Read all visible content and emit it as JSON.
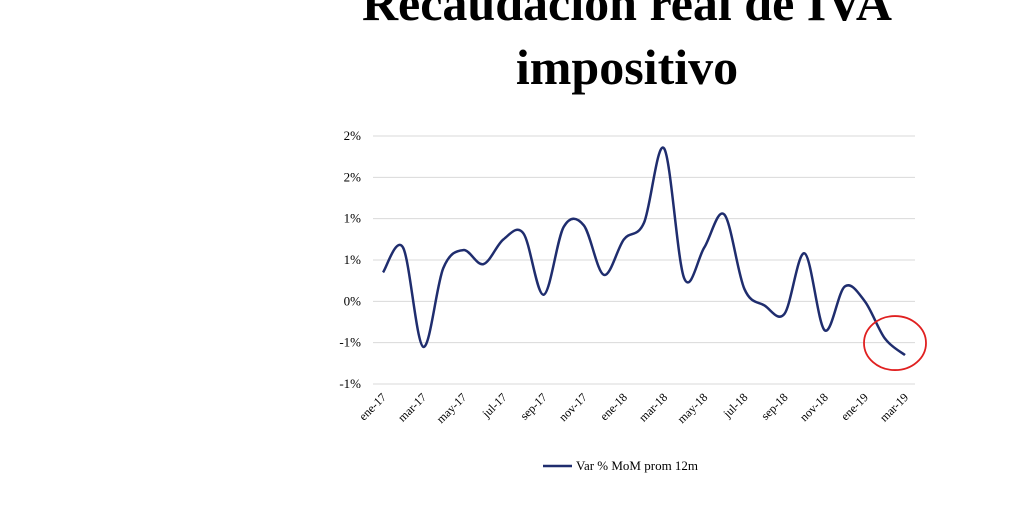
{
  "chart_data": {
    "type": "line",
    "title_lines": [
      "Recaudación real de IVA",
      "impositivo"
    ],
    "y_ticks": [
      "2%",
      "2%",
      "1%",
      "1%",
      "0%",
      "-1%",
      "-1%"
    ],
    "ylim": [
      -1.0,
      2.0
    ],
    "x_tick_labels": [
      "ene-17",
      "mar-17",
      "may-17",
      "jul-17",
      "sep-17",
      "nov-17",
      "ene-18",
      "mar-18",
      "may-18",
      "jul-18",
      "sep-18",
      "nov-18",
      "ene-19",
      "mar-19"
    ],
    "grid": true,
    "legend_position": "bottom",
    "series": [
      {
        "name": "Var % MoM prom 12m",
        "color": "#1f2d6e",
        "x": [
          "ene-17",
          "feb-17",
          "mar-17",
          "abr-17",
          "may-17",
          "jun-17",
          "jul-17",
          "ago-17",
          "sep-17",
          "oct-17",
          "nov-17",
          "dic-17",
          "ene-18",
          "feb-18",
          "mar-18",
          "abr-18",
          "may-18",
          "jun-18",
          "jul-18",
          "ago-18",
          "sep-18",
          "oct-18",
          "nov-18",
          "dic-18",
          "ene-19",
          "feb-19",
          "mar-19"
        ],
        "values": [
          0.35,
          0.65,
          -0.55,
          0.4,
          0.62,
          0.45,
          0.75,
          0.82,
          0.08,
          0.9,
          0.92,
          0.32,
          0.75,
          0.95,
          1.85,
          0.28,
          0.65,
          1.05,
          0.15,
          -0.05,
          -0.15,
          0.58,
          -0.35,
          0.18,
          0.0,
          -0.45,
          -0.65
        ]
      }
    ],
    "annotation": {
      "type": "circle",
      "color": "#e02020",
      "around": "mar-19"
    }
  }
}
